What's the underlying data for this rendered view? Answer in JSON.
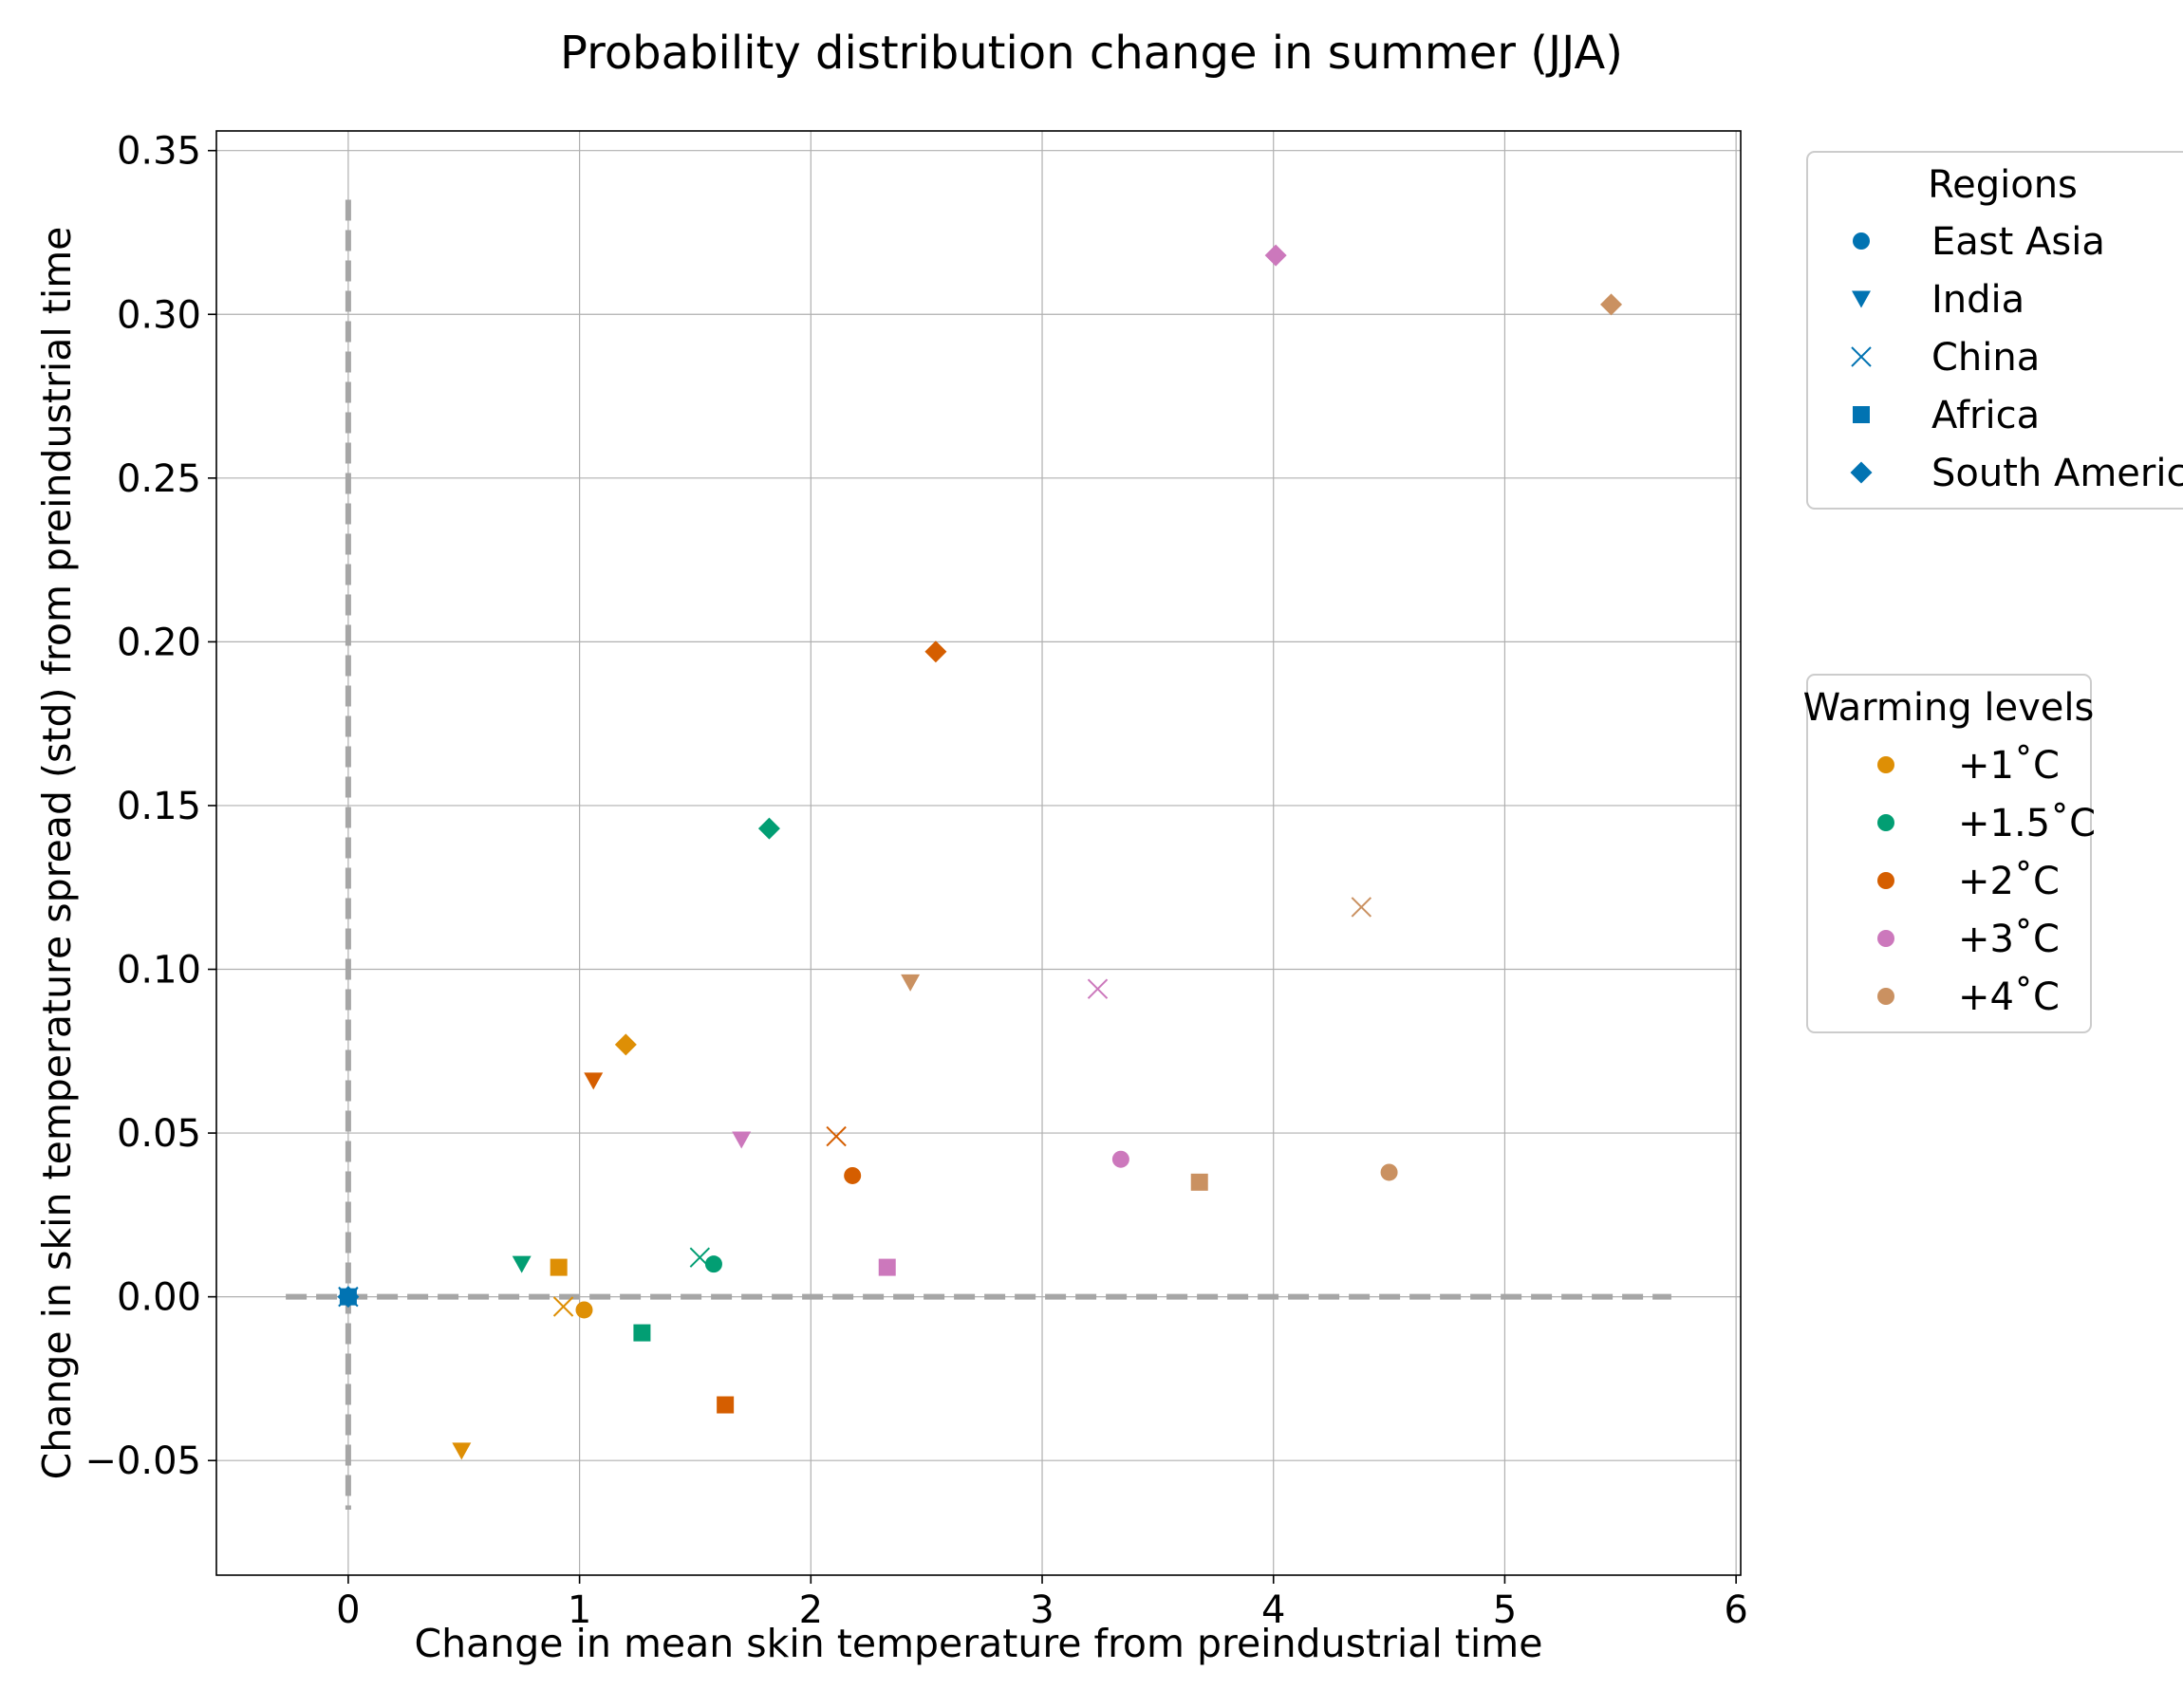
{
  "chart_data": {
    "type": "scatter",
    "title": "Probability distribution change in summer (JJA)",
    "xlabel": "Change in mean skin temperature from preindustrial time",
    "ylabel": "Change in skin temperature spread (std) from preindustrial time",
    "xlim": [
      -0.57,
      6.02
    ],
    "ylim": [
      -0.085,
      0.356
    ],
    "xticks": [
      0,
      1,
      2,
      3,
      4,
      5,
      6
    ],
    "xtick_labels": [
      "0",
      "1",
      "2",
      "3",
      "4",
      "5",
      "6"
    ],
    "yticks": [
      -0.05,
      0.0,
      0.05,
      0.1,
      0.15,
      0.2,
      0.25,
      0.3,
      0.35
    ],
    "ytick_labels": [
      "−0.05",
      "0.00",
      "0.05",
      "0.10",
      "0.15",
      "0.20",
      "0.25",
      "0.30",
      "0.35"
    ],
    "grid": true,
    "reference_lines": {
      "horizontal": {
        "y": 0,
        "x_range": [
          -0.27,
          5.72
        ],
        "color": "#a6a6a6",
        "style": "dashed"
      },
      "vertical": {
        "x": 0,
        "y_range": [
          -0.065,
          0.335
        ],
        "color": "#a6a6a6",
        "style": "dashed"
      }
    },
    "legend_regions": {
      "title": "Regions",
      "placement": "outside-right-top",
      "entries": [
        {
          "name": "East Asia",
          "marker": "circle"
        },
        {
          "name": "India",
          "marker": "triangle-down"
        },
        {
          "name": "China",
          "marker": "x"
        },
        {
          "name": "Africa",
          "marker": "square"
        },
        {
          "name": "South America",
          "marker": "diamond"
        }
      ],
      "color": "#0173b2"
    },
    "legend_warming": {
      "title": "Warming levels",
      "placement": "outside-right-middle",
      "entries": [
        {
          "name": "+1˚C",
          "color": "#de8f05"
        },
        {
          "name": "+1.5˚C",
          "color": "#029e73"
        },
        {
          "name": "+2˚C",
          "color": "#d55e00"
        },
        {
          "name": "+3˚C",
          "color": "#cc78bc"
        },
        {
          "name": "+4˚C",
          "color": "#ca9161"
        }
      ]
    },
    "points": [
      {
        "region": "East Asia",
        "level": "preindustrial",
        "marker": "circle",
        "color": "#0173b2",
        "x": 0,
        "y": 0
      },
      {
        "region": "India",
        "level": "preindustrial",
        "marker": "triangle-down",
        "color": "#0173b2",
        "x": 0,
        "y": 0
      },
      {
        "region": "China",
        "level": "preindustrial",
        "marker": "x",
        "color": "#0173b2",
        "x": 0,
        "y": 0
      },
      {
        "region": "Africa",
        "level": "preindustrial",
        "marker": "square",
        "color": "#0173b2",
        "x": 0,
        "y": 0
      },
      {
        "region": "South America",
        "level": "preindustrial",
        "marker": "diamond",
        "color": "#0173b2",
        "x": 0,
        "y": 0
      },
      {
        "region": "East Asia",
        "level": "+1",
        "marker": "circle",
        "color": "#de8f05",
        "x": 1.02,
        "y": -0.004
      },
      {
        "region": "India",
        "level": "+1",
        "marker": "triangle-down",
        "color": "#de8f05",
        "x": 0.49,
        "y": -0.047
      },
      {
        "region": "China",
        "level": "+1",
        "marker": "x",
        "color": "#de8f05",
        "x": 0.93,
        "y": -0.003
      },
      {
        "region": "Africa",
        "level": "+1",
        "marker": "square",
        "color": "#de8f05",
        "x": 0.91,
        "y": 0.009
      },
      {
        "region": "South America",
        "level": "+1",
        "marker": "diamond",
        "color": "#de8f05",
        "x": 1.2,
        "y": 0.077
      },
      {
        "region": "East Asia",
        "level": "+1.5",
        "marker": "circle",
        "color": "#029e73",
        "x": 1.58,
        "y": 0.01
      },
      {
        "region": "India",
        "level": "+1.5",
        "marker": "triangle-down",
        "color": "#029e73",
        "x": 0.75,
        "y": 0.01
      },
      {
        "region": "China",
        "level": "+1.5",
        "marker": "x",
        "color": "#029e73",
        "x": 1.52,
        "y": 0.012
      },
      {
        "region": "Africa",
        "level": "+1.5",
        "marker": "square",
        "color": "#029e73",
        "x": 1.27,
        "y": -0.011
      },
      {
        "region": "South America",
        "level": "+1.5",
        "marker": "diamond",
        "color": "#029e73",
        "x": 1.82,
        "y": 0.143
      },
      {
        "region": "East Asia",
        "level": "+2",
        "marker": "circle",
        "color": "#d55e00",
        "x": 2.18,
        "y": 0.037
      },
      {
        "region": "India",
        "level": "+2",
        "marker": "triangle-down",
        "color": "#d55e00",
        "x": 1.06,
        "y": 0.066
      },
      {
        "region": "China",
        "level": "+2",
        "marker": "x",
        "color": "#d55e00",
        "x": 2.11,
        "y": 0.049
      },
      {
        "region": "Africa",
        "level": "+2",
        "marker": "square",
        "color": "#d55e00",
        "x": 1.63,
        "y": -0.033
      },
      {
        "region": "South America",
        "level": "+2",
        "marker": "diamond",
        "color": "#d55e00",
        "x": 2.54,
        "y": 0.197
      },
      {
        "region": "East Asia",
        "level": "+3",
        "marker": "circle",
        "color": "#cc78bc",
        "x": 3.34,
        "y": 0.042
      },
      {
        "region": "India",
        "level": "+3",
        "marker": "triangle-down",
        "color": "#cc78bc",
        "x": 1.7,
        "y": 0.048
      },
      {
        "region": "China",
        "level": "+3",
        "marker": "x",
        "color": "#cc78bc",
        "x": 3.24,
        "y": 0.094
      },
      {
        "region": "Africa",
        "level": "+3",
        "marker": "square",
        "color": "#cc78bc",
        "x": 2.33,
        "y": 0.009
      },
      {
        "region": "South America",
        "level": "+3",
        "marker": "diamond",
        "color": "#cc78bc",
        "x": 4.01,
        "y": 0.318
      },
      {
        "region": "East Asia",
        "level": "+4",
        "marker": "circle",
        "color": "#ca9161",
        "x": 4.5,
        "y": 0.038
      },
      {
        "region": "India",
        "level": "+4",
        "marker": "triangle-down",
        "color": "#ca9161",
        "x": 2.43,
        "y": 0.096
      },
      {
        "region": "China",
        "level": "+4",
        "marker": "x",
        "color": "#ca9161",
        "x": 4.38,
        "y": 0.119
      },
      {
        "region": "Africa",
        "level": "+4",
        "marker": "square",
        "color": "#ca9161",
        "x": 3.68,
        "y": 0.035
      },
      {
        "region": "South America",
        "level": "+4",
        "marker": "diamond",
        "color": "#ca9161",
        "x": 5.46,
        "y": 0.303
      }
    ]
  }
}
